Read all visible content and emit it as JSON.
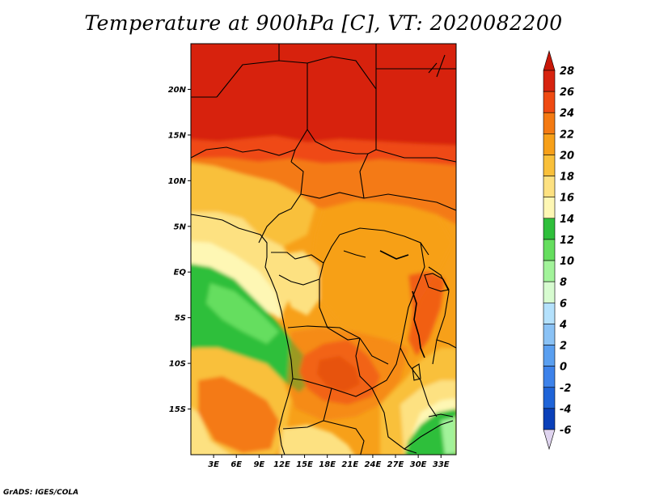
{
  "title": "Temperature at 900hPa [C], VT: 2020082200",
  "credit": "GrADS: IGES/COLA",
  "map": {
    "lat_range": [
      -20,
      25
    ],
    "lon_range": [
      0,
      35
    ],
    "lat_ticks": [
      {
        "value": 20,
        "label": "20N"
      },
      {
        "value": 15,
        "label": "15N"
      },
      {
        "value": 10,
        "label": "10N"
      },
      {
        "value": 5,
        "label": "5N"
      },
      {
        "value": 0,
        "label": "EQ"
      },
      {
        "value": -5,
        "label": "5S"
      },
      {
        "value": -10,
        "label": "10S"
      },
      {
        "value": -15,
        "label": "15S"
      }
    ],
    "lon_ticks": [
      {
        "value": 3,
        "label": "3E"
      },
      {
        "value": 6,
        "label": "6E"
      },
      {
        "value": 9,
        "label": "9E"
      },
      {
        "value": 12,
        "label": "12E"
      },
      {
        "value": 15,
        "label": "15E"
      },
      {
        "value": 18,
        "label": "18E"
      },
      {
        "value": 21,
        "label": "21E"
      },
      {
        "value": 24,
        "label": "24E"
      },
      {
        "value": 27,
        "label": "27E"
      },
      {
        "value": 30,
        "label": "30E"
      },
      {
        "value": 33,
        "label": "33E"
      }
    ]
  },
  "colorbar": {
    "labels": [
      "28",
      "26",
      "24",
      "22",
      "20",
      "18",
      "16",
      "14",
      "12",
      "10",
      "8",
      "6",
      "4",
      "2",
      "0",
      "-2",
      "-4",
      "-6"
    ],
    "colors": [
      "#d7230f",
      "#ef4a12",
      "#f47a12",
      "#f7a019",
      "#f9c03a",
      "#fde181",
      "#fef7b4",
      "#2fbf3b",
      "#65de5e",
      "#a2f39a",
      "#d7fbd0",
      "#b4e1fc",
      "#8ac2f5",
      "#5a9ff0",
      "#3d82ea",
      "#1f64d8",
      "#0a40b9",
      "#06157a"
    ],
    "top_arrow_color": "#c81708",
    "bottom_arrow_color": "#dfd4ef"
  }
}
